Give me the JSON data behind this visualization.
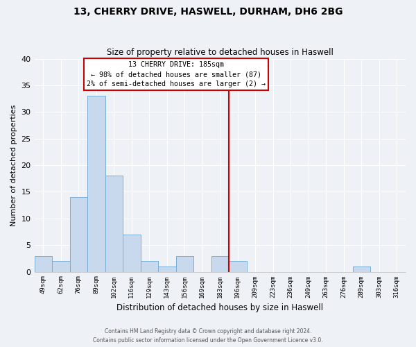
{
  "title": "13, CHERRY DRIVE, HASWELL, DURHAM, DH6 2BG",
  "subtitle": "Size of property relative to detached houses in Haswell",
  "xlabel": "Distribution of detached houses by size in Haswell",
  "ylabel": "Number of detached properties",
  "bin_labels": [
    "49sqm",
    "62sqm",
    "76sqm",
    "89sqm",
    "102sqm",
    "116sqm",
    "129sqm",
    "143sqm",
    "156sqm",
    "169sqm",
    "183sqm",
    "196sqm",
    "209sqm",
    "223sqm",
    "236sqm",
    "249sqm",
    "263sqm",
    "276sqm",
    "289sqm",
    "303sqm",
    "316sqm"
  ],
  "bar_heights": [
    3,
    2,
    14,
    33,
    18,
    7,
    2,
    1,
    3,
    0,
    3,
    2,
    0,
    0,
    0,
    0,
    0,
    0,
    1,
    0,
    0
  ],
  "bar_color": "#c8d9ee",
  "bar_edge_color": "#7aaed4",
  "vline_x_index": 10.5,
  "vline_color": "#cc0000",
  "annotation_title": "13 CHERRY DRIVE: 185sqm",
  "annotation_line1": "← 98% of detached houses are smaller (87)",
  "annotation_line2": "2% of semi-detached houses are larger (2) →",
  "annotation_box_color": "#ffffff",
  "annotation_box_edge": "#cc0000",
  "ylim": [
    0,
    40
  ],
  "yticks": [
    0,
    5,
    10,
    15,
    20,
    25,
    30,
    35,
    40
  ],
  "footer_line1": "Contains HM Land Registry data © Crown copyright and database right 2024.",
  "footer_line2": "Contains public sector information licensed under the Open Government Licence v3.0.",
  "background_color": "#eef2f7"
}
